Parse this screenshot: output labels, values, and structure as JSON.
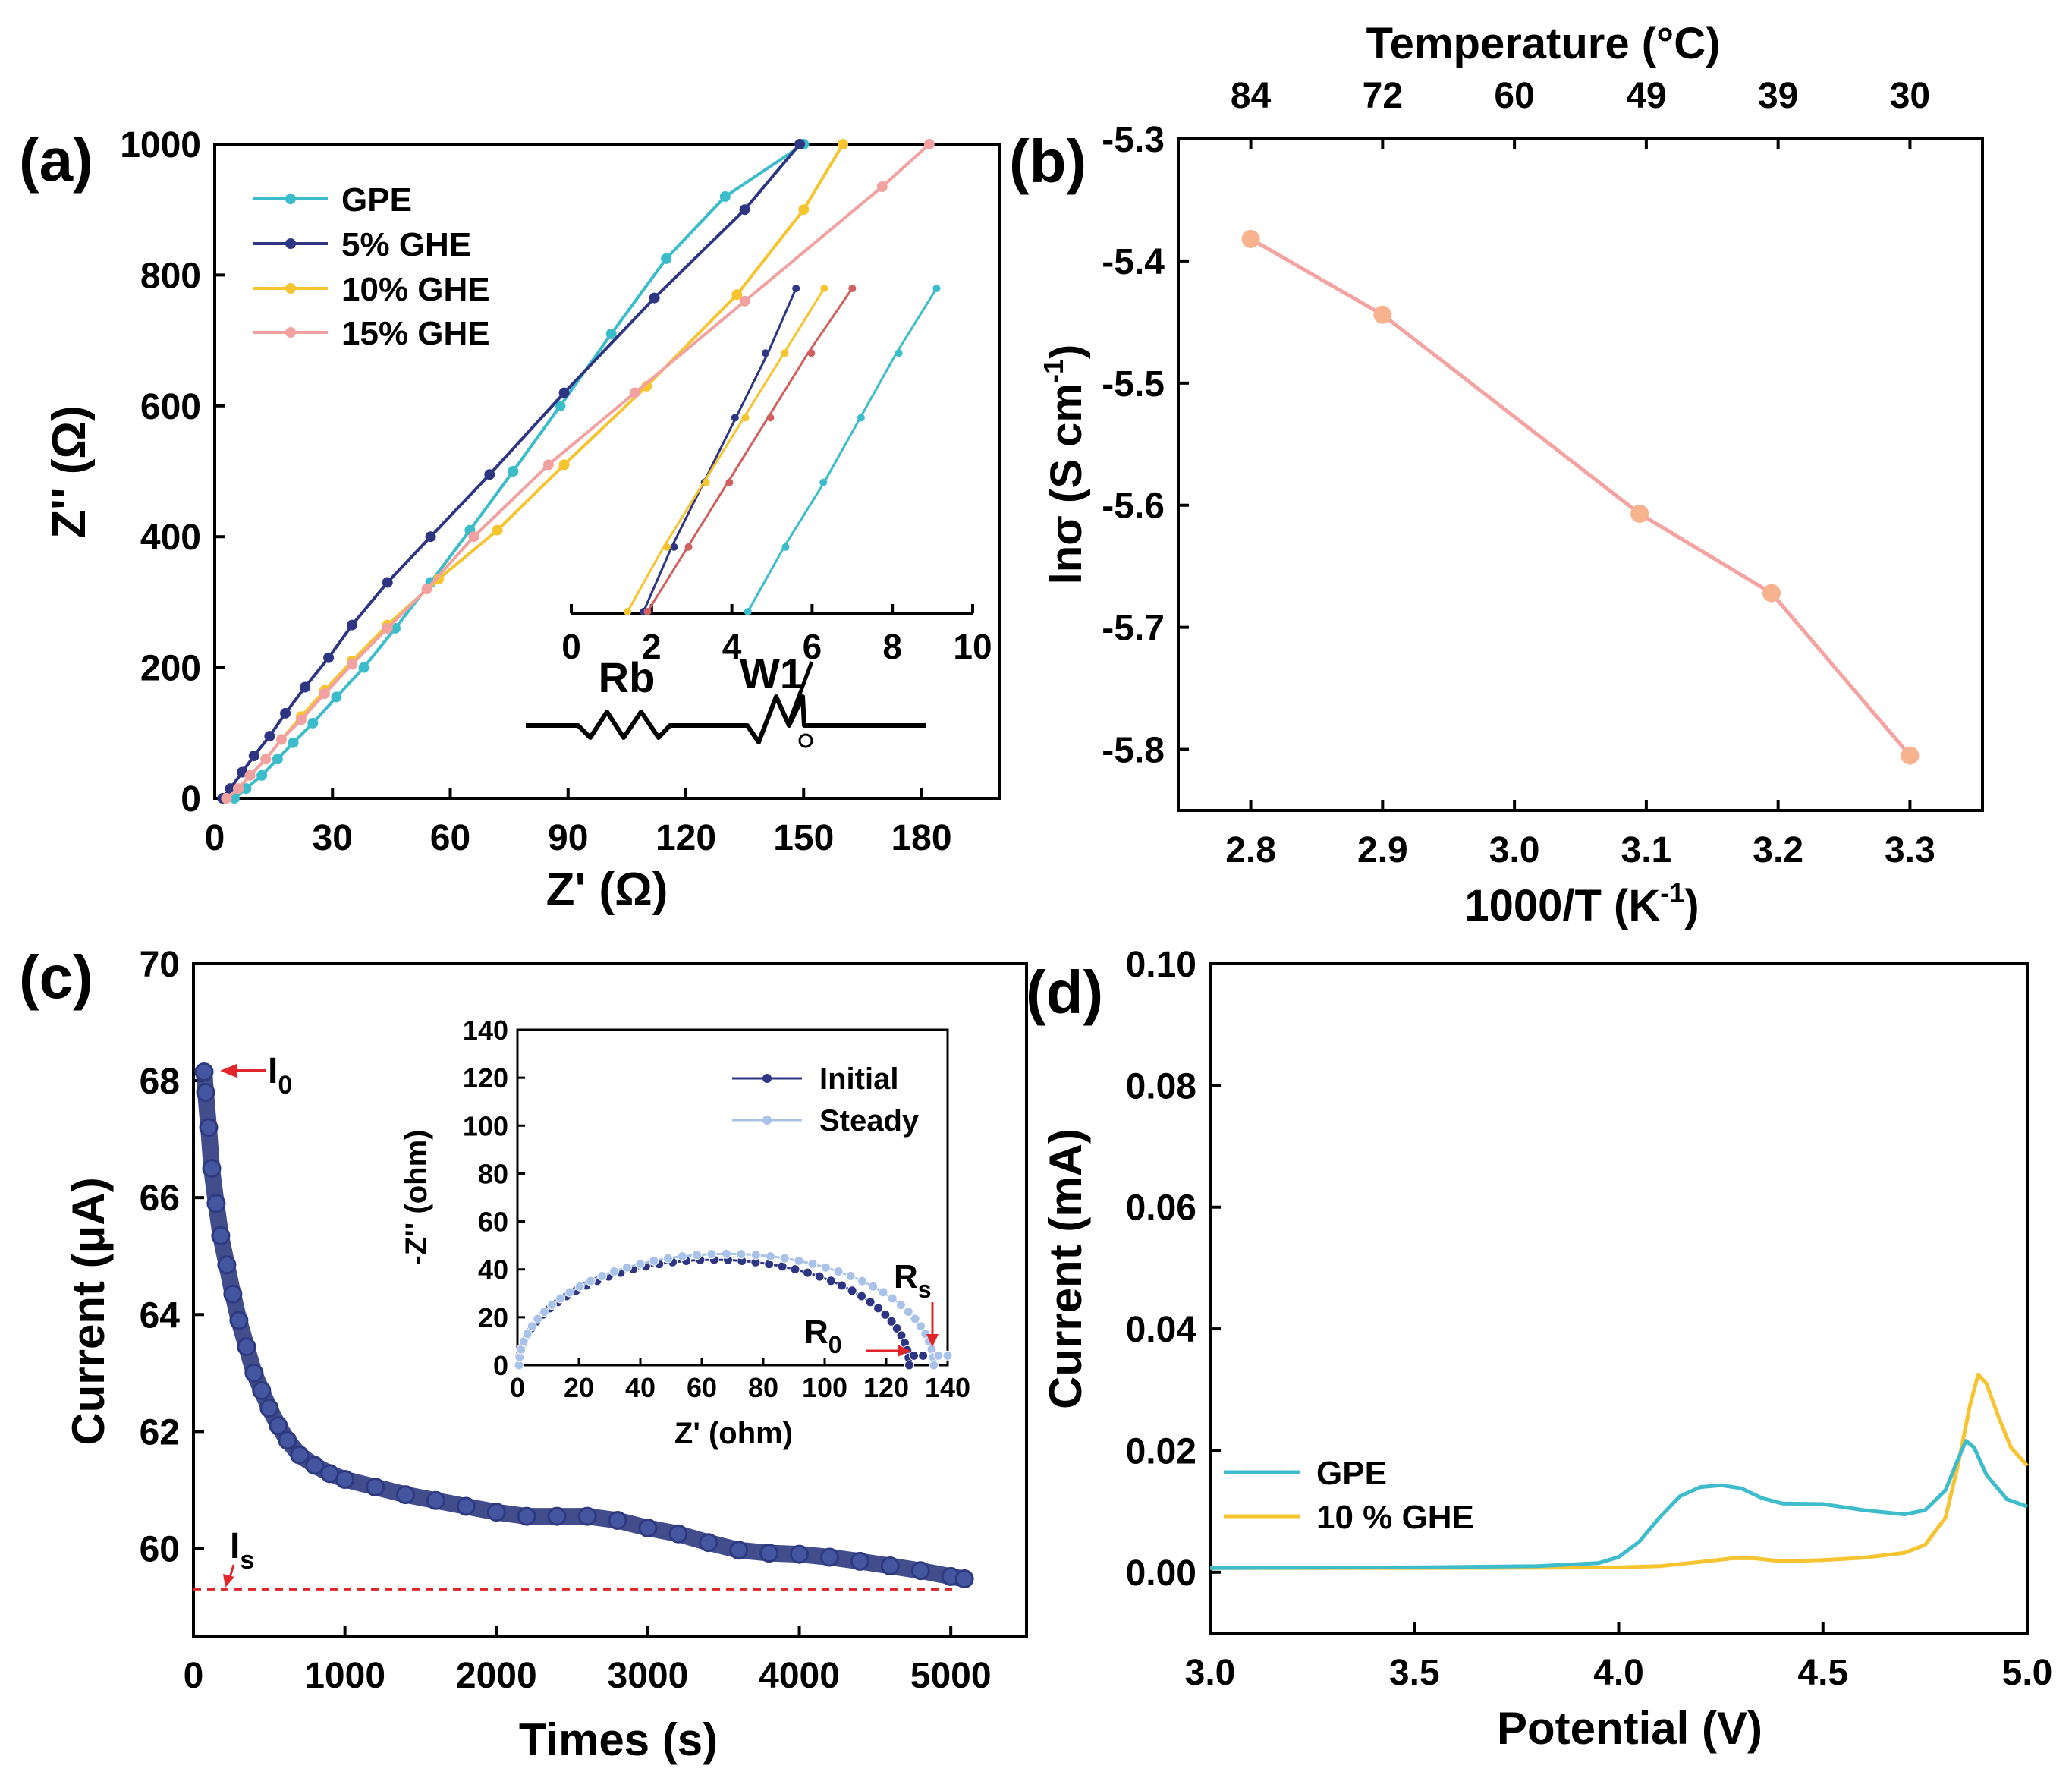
{
  "panels": {
    "a": "(a)",
    "b": "(b)",
    "c": "(c)",
    "d": "(d)"
  },
  "chart_data": [
    {
      "panel": "(a)",
      "type": "line",
      "xlabel": "Z' (Ω)",
      "ylabel": "Z'' (Ω)",
      "xlim": [
        0,
        200
      ],
      "ylim": [
        0,
        1000
      ],
      "xticks": [
        0,
        30,
        60,
        90,
        120,
        150,
        180
      ],
      "yticks": [
        0,
        200,
        400,
        600,
        800,
        1000
      ],
      "legend_position": "top-left",
      "series": [
        {
          "name": "GPE",
          "color": "#3bbccb",
          "x": [
            5,
            8,
            12,
            16,
            20,
            25,
            31,
            38,
            46,
            55,
            65,
            76,
            88,
            101,
            115,
            130,
            150
          ],
          "y": [
            0,
            15,
            35,
            60,
            85,
            115,
            155,
            200,
            260,
            330,
            410,
            500,
            600,
            710,
            825,
            920,
            1000
          ]
        },
        {
          "name": "5% GHE",
          "color": "#2e3683",
          "x": [
            2,
            4,
            7,
            10,
            14,
            18,
            23,
            29,
            35,
            44,
            55,
            70,
            89,
            112,
            135,
            149
          ],
          "y": [
            0,
            15,
            40,
            65,
            95,
            130,
            170,
            215,
            265,
            330,
            400,
            495,
            620,
            765,
            900,
            1000
          ]
        },
        {
          "name": "10% GHE",
          "color": "#f5c42f",
          "x": [
            3,
            6,
            9,
            13,
            17,
            22,
            28,
            35,
            44,
            57,
            72,
            89,
            110,
            133,
            150,
            160
          ],
          "y": [
            0,
            15,
            35,
            60,
            90,
            125,
            165,
            210,
            265,
            335,
            410,
            510,
            630,
            770,
            900,
            1000
          ]
        },
        {
          "name": "15% GHE",
          "color": "#f2a1a1",
          "x": [
            3,
            6,
            9,
            13,
            17,
            22,
            28,
            35,
            44,
            54,
            66,
            85,
            107,
            135,
            170,
            182
          ],
          "y": [
            0,
            15,
            35,
            60,
            90,
            120,
            160,
            205,
            260,
            320,
            400,
            510,
            620,
            760,
            935,
            1000
          ]
        }
      ],
      "inset": {
        "type": "line",
        "xlim": [
          0,
          10
        ],
        "xticks": [
          0,
          2,
          4,
          6,
          8,
          10
        ],
        "series": [
          {
            "name": "5% GHE",
            "color": "#2e3683",
            "x": [
              1.8,
              2.5,
              3.3,
              4.1,
              4.9,
              5.6
            ],
            "y": [
              0,
              0.2,
              0.4,
              0.6,
              0.8,
              1.0
            ]
          },
          {
            "name": "10% GHE",
            "color": "#f5c42f",
            "x": [
              1.4,
              2.3,
              3.3,
              4.3,
              5.3,
              6.3
            ],
            "y": [
              0,
              0.2,
              0.4,
              0.6,
              0.8,
              1.0
            ]
          },
          {
            "name": "15% GHE",
            "color": "#d06060",
            "x": [
              1.9,
              2.9,
              3.9,
              4.9,
              5.9,
              7.0
            ],
            "y": [
              0,
              0.2,
              0.4,
              0.6,
              0.8,
              1.0
            ]
          },
          {
            "name": "GPE",
            "color": "#3bbccb",
            "x": [
              4.4,
              5.3,
              6.3,
              7.2,
              8.1,
              9.1
            ],
            "y": [
              0,
              0.2,
              0.4,
              0.6,
              0.8,
              1.0
            ]
          }
        ],
        "circuit_labels": [
          "Rb",
          "W1"
        ]
      }
    },
    {
      "panel": "(b)",
      "type": "line",
      "xlabel": "1000/T (K",
      "xlabel_sup": "-1",
      "xlabel_end": ")",
      "ylabel": "lnσ (S cm",
      "ylabel_sup": "-1",
      "ylabel_end": ")",
      "top_xlabel": "Temperature  (°C)",
      "top_xticks": [
        {
          "at": 2.8,
          "label": "84"
        },
        {
          "at": 2.9,
          "label": "72"
        },
        {
          "at": 3.0,
          "label": "60"
        },
        {
          "at": 3.1,
          "label": "49"
        },
        {
          "at": 3.2,
          "label": "39"
        },
        {
          "at": 3.3,
          "label": "30"
        }
      ],
      "xlim": [
        2.745,
        3.355
      ],
      "ylim": [
        -5.85,
        -5.3
      ],
      "xticks": [
        2.8,
        2.9,
        3.0,
        3.1,
        3.2,
        3.3
      ],
      "yticks": [
        -5.3,
        -5.4,
        -5.5,
        -5.6,
        -5.7,
        -5.8
      ],
      "color": "#f4a3a3",
      "marker_color": "#f6b38e",
      "x": [
        2.8,
        2.9,
        3.095,
        3.195,
        3.3
      ],
      "y": [
        -5.382,
        -5.444,
        -5.607,
        -5.672,
        -5.805
      ]
    },
    {
      "panel": "(c)",
      "type": "scatter",
      "xlabel": "Times (s)",
      "ylabel": "Current (μA)",
      "xlim": [
        0,
        5500
      ],
      "ylim": [
        58.5,
        70
      ],
      "xticks": [
        0,
        1000,
        2000,
        3000,
        4000,
        5000
      ],
      "yticks": [
        60,
        62,
        64,
        66,
        68,
        70
      ],
      "color": "#2e3a80",
      "x": [
        70,
        80,
        100,
        120,
        150,
        180,
        220,
        260,
        300,
        350,
        400,
        450,
        500,
        560,
        620,
        700,
        800,
        900,
        1000,
        1200,
        1400,
        1600,
        1800,
        2000,
        2200,
        2400,
        2600,
        2800,
        3000,
        3200,
        3400,
        3600,
        3800,
        4000,
        4200,
        4400,
        4600,
        4800,
        5000,
        5090
      ],
      "y": [
        68.15,
        67.8,
        67.2,
        66.5,
        65.9,
        65.35,
        64.85,
        64.35,
        63.9,
        63.45,
        63.0,
        62.7,
        62.4,
        62.1,
        61.85,
        61.6,
        61.42,
        61.28,
        61.18,
        61.05,
        60.92,
        60.82,
        60.72,
        60.62,
        60.55,
        60.55,
        60.55,
        60.48,
        60.35,
        60.25,
        60.1,
        59.97,
        59.92,
        59.9,
        59.85,
        59.78,
        59.7,
        59.62,
        59.52,
        59.48
      ],
      "annotations": {
        "i0": "I",
        "i0_sub": "0",
        "is": "I",
        "is_sub": "s"
      },
      "steady_level": 59.3,
      "inset": {
        "type": "line",
        "xlabel": "Z' (ohm)",
        "ylabel": "-Z'' (ohm)",
        "xlim": [
          0,
          140
        ],
        "ylim": [
          0,
          140
        ],
        "xticks": [
          0,
          20,
          40,
          60,
          80,
          100,
          120,
          140
        ],
        "yticks": [
          0,
          20,
          40,
          60,
          80,
          100,
          120,
          140
        ],
        "legend_position": "top-right",
        "series": [
          {
            "name": "Initial",
            "color": "#2e3683",
            "center": 64,
            "radius": 63.5,
            "amplitude": 44,
            "end": 127
          },
          {
            "name": "Steady",
            "color": "#a9c2ea",
            "center": 68,
            "radius": 67.5,
            "amplitude": 46.5,
            "end": 135
          }
        ],
        "annotations": {
          "r0": "R",
          "r0_sub": "0",
          "rs": "R",
          "rs_sub": "s"
        }
      }
    },
    {
      "panel": "(d)",
      "type": "line",
      "xlabel": "Potential (V)",
      "ylabel": "Current (mA)",
      "xlim": [
        3.0,
        5.0
      ],
      "ylim": [
        -0.01,
        0.1
      ],
      "xticks": [
        "3.0",
        "3.5",
        "4.0",
        "4.5",
        "5.0"
      ],
      "yticks": [
        "0.00",
        "0.02",
        "0.04",
        "0.06",
        "0.08",
        "0.10"
      ],
      "legend_position": "bottom-left",
      "series": [
        {
          "name": "GPE",
          "color": "#3ebccb",
          "x": [
            3.0,
            3.5,
            3.8,
            3.95,
            4.0,
            4.05,
            4.1,
            4.15,
            4.2,
            4.25,
            4.3,
            4.35,
            4.4,
            4.5,
            4.6,
            4.7,
            4.75,
            4.8,
            4.83,
            4.85,
            4.87,
            4.9,
            4.95,
            5.0
          ],
          "y": [
            0.0007,
            0.0008,
            0.001,
            0.0015,
            0.0025,
            0.005,
            0.009,
            0.0125,
            0.014,
            0.0143,
            0.0138,
            0.0122,
            0.0113,
            0.0112,
            0.0102,
            0.0095,
            0.0102,
            0.0135,
            0.0185,
            0.0216,
            0.0205,
            0.016,
            0.012,
            0.0108
          ]
        },
        {
          "name": "10 % GHE",
          "color": "#f6c431",
          "x": [
            3.0,
            3.5,
            4.0,
            4.1,
            4.2,
            4.28,
            4.33,
            4.4,
            4.5,
            4.6,
            4.7,
            4.75,
            4.8,
            4.83,
            4.86,
            4.88,
            4.9,
            4.93,
            4.96,
            5.0
          ],
          "y": [
            0.0007,
            0.0007,
            0.0008,
            0.001,
            0.0017,
            0.0023,
            0.0023,
            0.0018,
            0.002,
            0.0024,
            0.0032,
            0.0045,
            0.009,
            0.0175,
            0.0275,
            0.0325,
            0.031,
            0.0255,
            0.0205,
            0.0175
          ]
        }
      ]
    }
  ]
}
